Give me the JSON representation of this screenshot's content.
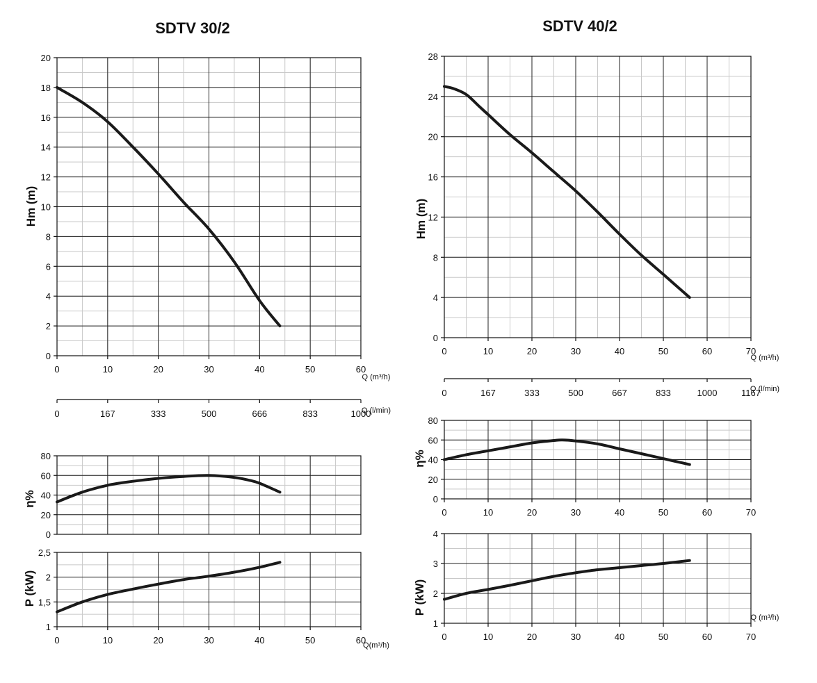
{
  "chart_data": [
    {
      "id": "hm30",
      "type": "line",
      "title": "SDTV 30/2",
      "ylabel": "Hm   (m)",
      "xlabel": "Q (m³/h)",
      "xlim": [
        0,
        60
      ],
      "ylim": [
        0,
        20
      ],
      "x_ticks": [
        "0",
        "10",
        "20",
        "30",
        "40",
        "50",
        "60"
      ],
      "y_ticks": [
        "0",
        "2",
        "4",
        "6",
        "8",
        "10",
        "12",
        "14",
        "16",
        "18",
        "20"
      ],
      "grid": true,
      "series": [
        {
          "x": [
            0,
            5,
            10,
            15,
            20,
            25,
            30,
            35,
            40,
            44
          ],
          "y": [
            18,
            17,
            15.7,
            14,
            12.2,
            10.3,
            8.5,
            6.3,
            3.7,
            2
          ]
        }
      ]
    },
    {
      "id": "lmin30",
      "type": "axis",
      "xlabel": "Q (l/min)",
      "ticks": [
        "0",
        "167",
        "333",
        "500",
        "666",
        "833",
        "1000"
      ]
    },
    {
      "id": "eff30",
      "type": "line",
      "ylabel": "η%",
      "xlim": [
        0,
        60
      ],
      "ylim": [
        0,
        80
      ],
      "y_ticks": [
        "0",
        "20",
        "40",
        "60",
        "80"
      ],
      "grid": true,
      "series": [
        {
          "x": [
            0,
            5,
            10,
            15,
            20,
            25,
            30,
            35,
            38,
            40,
            44
          ],
          "y": [
            33,
            43,
            50,
            54,
            57,
            59,
            60,
            58,
            55,
            52,
            43
          ]
        }
      ]
    },
    {
      "id": "pow30",
      "type": "line",
      "ylabel": "P   (kW)",
      "xlabel": "Q(m³/h)",
      "xlim": [
        0,
        60
      ],
      "ylim": [
        1,
        2.5
      ],
      "x_ticks": [
        "0",
        "10",
        "20",
        "30",
        "40",
        "50",
        "60"
      ],
      "y_ticks": [
        "1",
        "1,5",
        "2",
        "2,5"
      ],
      "grid": true,
      "series": [
        {
          "x": [
            0,
            5,
            10,
            15,
            20,
            25,
            30,
            35,
            40,
            44
          ],
          "y": [
            1.3,
            1.5,
            1.65,
            1.76,
            1.86,
            1.95,
            2.02,
            2.1,
            2.2,
            2.3
          ]
        }
      ]
    },
    {
      "id": "hm40",
      "type": "line",
      "title": "SDTV 40/2",
      "ylabel": "Hm   (m)",
      "xlabel": "Q (m³/h)",
      "xlim": [
        0,
        70
      ],
      "ylim": [
        0,
        28
      ],
      "x_ticks": [
        "0",
        "10",
        "20",
        "30",
        "40",
        "50",
        "60",
        "70"
      ],
      "y_ticks": [
        "0",
        "4",
        "8",
        "12",
        "16",
        "20",
        "24",
        "28"
      ],
      "grid": true,
      "series": [
        {
          "x": [
            0,
            2,
            5,
            8,
            10,
            15,
            20,
            25,
            30,
            35,
            40,
            45,
            50,
            56
          ],
          "y": [
            25,
            24.8,
            24.2,
            23,
            22.2,
            20.2,
            18.4,
            16.5,
            14.6,
            12.5,
            10.3,
            8.2,
            6.3,
            4
          ]
        }
      ]
    },
    {
      "id": "lmin40",
      "type": "axis",
      "xlabel": "Q (l/min)",
      "ticks": [
        "0",
        "167",
        "333",
        "500",
        "667",
        "833",
        "1000",
        "1167"
      ]
    },
    {
      "id": "eff40",
      "type": "line",
      "ylabel": "η%",
      "xlim": [
        0,
        70
      ],
      "ylim": [
        0,
        80
      ],
      "x_ticks": [
        "0",
        "10",
        "20",
        "30",
        "40",
        "50",
        "60",
        "70"
      ],
      "y_ticks": [
        "0",
        "20",
        "40",
        "60",
        "80"
      ],
      "grid": true,
      "series": [
        {
          "x": [
            0,
            5,
            10,
            15,
            20,
            25,
            27,
            30,
            35,
            40,
            45,
            50,
            56
          ],
          "y": [
            40,
            45,
            49,
            53,
            57,
            59.5,
            60,
            59,
            56,
            51,
            46,
            41,
            35
          ]
        }
      ]
    },
    {
      "id": "pow40",
      "type": "line",
      "ylabel": "P   (kW)",
      "xlabel": "Q (m³/h)",
      "xlim": [
        0,
        70
      ],
      "ylim": [
        1,
        4
      ],
      "x_ticks": [
        "0",
        "10",
        "20",
        "30",
        "40",
        "50",
        "60",
        "70"
      ],
      "y_ticks": [
        "1",
        "2",
        "3",
        "4"
      ],
      "grid": true,
      "series": [
        {
          "x": [
            0,
            5,
            10,
            15,
            20,
            25,
            30,
            35,
            40,
            45,
            50,
            56
          ],
          "y": [
            1.8,
            2.0,
            2.13,
            2.27,
            2.42,
            2.57,
            2.69,
            2.79,
            2.86,
            2.93,
            3.0,
            3.1
          ]
        }
      ]
    }
  ]
}
